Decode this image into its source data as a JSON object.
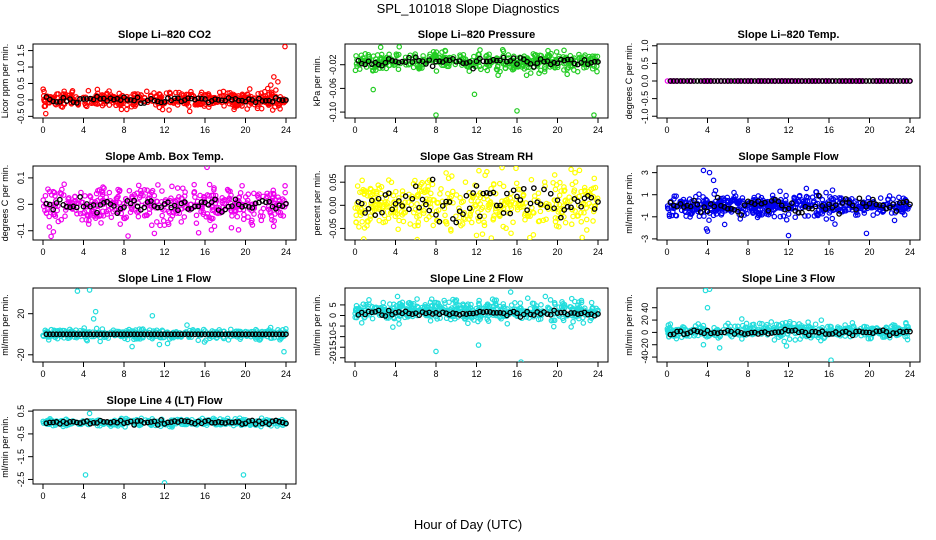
{
  "title": "SPL_101018  Slope Diagnostics",
  "xlabel": "Hour of Day (UTC)",
  "chart_data": [
    {
      "type": "scatter",
      "title": "Slope Li–820 CO2",
      "ylabel": "Licor ppm per min.",
      "xlim": [
        0,
        24
      ],
      "ylim": [
        -0.55,
        1.7
      ],
      "yticks": [
        -0.5,
        0.0,
        0.5,
        1.0,
        1.5
      ],
      "yticklabels": [
        "-0.5",
        "0.0",
        "0.5",
        "1.0",
        "1.5"
      ],
      "xticks": [
        0,
        4,
        8,
        12,
        16,
        20,
        24
      ],
      "noise": 0.12,
      "mean_noise": 0.05,
      "series": [
        {
          "role": "daily",
          "color": "#ff0000",
          "points_per_day": 420,
          "center": 0.0
        },
        {
          "role": "mean",
          "color": "#000000",
          "center": 0.0
        }
      ],
      "outliers": [
        [
          22.5,
          0.45
        ],
        [
          22.8,
          0.7
        ],
        [
          23.0,
          0.3
        ],
        [
          23.2,
          0.55
        ],
        [
          23.9,
          1.62
        ],
        [
          21.9,
          0.25
        ]
      ]
    },
    {
      "type": "scatter",
      "title": "Slope Li–820 Pressure",
      "ylabel": "kPa per min.",
      "xlim": [
        0,
        24
      ],
      "ylim": [
        -0.11,
        0.015
      ],
      "yticks": [
        -0.1,
        -0.06,
        -0.02
      ],
      "yticklabels": [
        "-0.10",
        "-0.06",
        "-0.02"
      ],
      "xticks": [
        0,
        4,
        8,
        12,
        16,
        20,
        24
      ],
      "noise": 0.008,
      "mean_noise": 0.004,
      "series": [
        {
          "role": "daily",
          "color": "#22cc22",
          "points_per_day": 420,
          "center": -0.015
        },
        {
          "role": "mean",
          "color": "#000000",
          "center": -0.015
        }
      ],
      "outliers": [
        [
          1.8,
          -0.062
        ],
        [
          8.0,
          -0.105
        ],
        [
          11.8,
          -0.07
        ],
        [
          16.0,
          -0.098
        ],
        [
          23.6,
          -0.105
        ]
      ]
    },
    {
      "type": "scatter",
      "title": "Slope Li–820 Temp.",
      "ylabel": "degrees C per min.",
      "xlim": [
        0,
        24
      ],
      "ylim": [
        -1.05,
        1.05
      ],
      "yticks": [
        -1.0,
        -0.5,
        0.0,
        0.5,
        1.0
      ],
      "yticklabels": [
        "-1.0",
        "-0.5",
        "0.0",
        "0.5",
        "1.0"
      ],
      "xticks": [
        0,
        4,
        8,
        12,
        16,
        20,
        24
      ],
      "noise": 0.0,
      "mean_noise": 0.0,
      "series": [
        {
          "role": "daily",
          "color": "#ee00ee",
          "points_per_day": 140,
          "center": 0.0
        },
        {
          "role": "mean",
          "color": "#000000",
          "center": 0.0
        }
      ],
      "outliers": []
    },
    {
      "type": "scatter",
      "title": "Slope Amb. Box Temp.",
      "ylabel": "degrees C per min.",
      "xlim": [
        0,
        24
      ],
      "ylim": [
        -0.135,
        0.145
      ],
      "yticks": [
        -0.1,
        0.0,
        0.1
      ],
      "yticklabels": [
        "-0.1",
        "0.0",
        "0.1"
      ],
      "xticks": [
        0,
        4,
        8,
        12,
        16,
        20,
        24
      ],
      "noise": 0.035,
      "mean_noise": 0.012,
      "series": [
        {
          "role": "daily",
          "color": "#ee00ee",
          "points_per_day": 420,
          "center": -0.005
        },
        {
          "role": "mean",
          "color": "#000000",
          "center": -0.005
        }
      ],
      "outliers": [
        [
          16.2,
          0.14
        ],
        [
          8.4,
          -0.12
        ],
        [
          11.0,
          -0.11
        ]
      ]
    },
    {
      "type": "scatter",
      "title": "Slope Gas Stream RH",
      "ylabel": "percent per min.",
      "xlim": [
        0,
        24
      ],
      "ylim": [
        -0.075,
        0.085
      ],
      "yticks": [
        -0.05,
        0.0,
        0.05
      ],
      "yticklabels": [
        "-0.05",
        "0.00",
        "0.05"
      ],
      "xticks": [
        0,
        4,
        8,
        12,
        16,
        20,
        24
      ],
      "noise": 0.03,
      "mean_noise": 0.02,
      "series": [
        {
          "role": "daily",
          "color": "#ffff00",
          "points_per_day": 420,
          "center": 0.0
        },
        {
          "role": "mean",
          "color": "#000000",
          "center": 0.0
        }
      ],
      "outliers": [
        [
          9.0,
          0.07
        ],
        [
          12.0,
          -0.065
        ],
        [
          15.9,
          0.08
        ]
      ]
    },
    {
      "type": "scatter",
      "title": "Slope Sample Flow",
      "ylabel": "ml/min per min.",
      "xlim": [
        0,
        24
      ],
      "ylim": [
        -3.1,
        3.6
      ],
      "yticks": [
        -3,
        -1,
        1,
        3
      ],
      "yticklabels": [
        "-3",
        "-1",
        "1",
        "3"
      ],
      "xticks": [
        0,
        4,
        8,
        12,
        16,
        20,
        24
      ],
      "noise": 0.5,
      "mean_noise": 0.35,
      "series": [
        {
          "role": "daily",
          "color": "#0000ee",
          "points_per_day": 520,
          "center": 0.0
        },
        {
          "role": "mean",
          "color": "#000000",
          "center": 0.0
        }
      ],
      "outliers": [
        [
          3.6,
          3.2
        ],
        [
          4.2,
          3.0
        ],
        [
          4.6,
          2.3
        ],
        [
          3.9,
          -2.1
        ],
        [
          4.0,
          -2.3
        ],
        [
          12.0,
          -2.7
        ],
        [
          19.7,
          -2.5
        ]
      ]
    },
    {
      "type": "scatter",
      "title": "Slope Line 1 Flow",
      "ylabel": "ml/min per min.",
      "xlim": [
        0,
        24
      ],
      "ylim": [
        -27,
        45
      ],
      "yticks": [
        -20,
        20
      ],
      "yticklabels": [
        "-20",
        "20"
      ],
      "xticks": [
        0,
        4,
        8,
        12,
        16,
        20,
        24
      ],
      "noise": 2.5,
      "mean_noise": 0.0,
      "series": [
        {
          "role": "daily",
          "color": "#22dddd",
          "points_per_day": 420,
          "center": 0.0
        },
        {
          "role": "mean",
          "color": "#000000",
          "center": 0.0
        }
      ],
      "outliers": [
        [
          3.4,
          42
        ],
        [
          4.6,
          43
        ],
        [
          5.2,
          22
        ],
        [
          5.0,
          15
        ],
        [
          8.8,
          -12
        ],
        [
          10.8,
          18
        ],
        [
          11.5,
          -10
        ],
        [
          12.3,
          -9
        ],
        [
          23.8,
          -17
        ]
      ]
    },
    {
      "type": "scatter",
      "title": "Slope Line 2 Flow",
      "ylabel": "ml/min per min.",
      "xlim": [
        0,
        24
      ],
      "ylim": [
        -22,
        13
      ],
      "yticks": [
        -20,
        -15,
        -10,
        -5,
        0,
        5
      ],
      "yticklabels": [
        "-20",
        "-15",
        "-10",
        "-5",
        "0",
        "5"
      ],
      "xticks": [
        0,
        4,
        8,
        12,
        16,
        20,
        24
      ],
      "noise": 2.4,
      "mean_noise": 0.6,
      "series": [
        {
          "role": "daily",
          "color": "#22dddd",
          "points_per_day": 520,
          "center": 2.0
        },
        {
          "role": "mean",
          "color": "#000000",
          "center": 1.0
        }
      ],
      "outliers": [
        [
          8.0,
          -17
        ],
        [
          16.4,
          -22
        ],
        [
          12.2,
          -14
        ],
        [
          18.8,
          9
        ],
        [
          4.2,
          9
        ]
      ]
    },
    {
      "type": "scatter",
      "title": "Slope Line 3 Flow",
      "ylabel": "ml/min per min.",
      "xlim": [
        0,
        24
      ],
      "ylim": [
        -48,
        72
      ],
      "yticks": [
        -40,
        -20,
        0,
        20,
        40
      ],
      "yticklabels": [
        "-40",
        "-20",
        "0",
        "20",
        "40"
      ],
      "xticks": [
        0,
        4,
        8,
        12,
        16,
        20,
        24
      ],
      "noise": 6,
      "mean_noise": 2,
      "series": [
        {
          "role": "daily",
          "color": "#22dddd",
          "points_per_day": 480,
          "center": 2.0
        },
        {
          "role": "mean",
          "color": "#000000",
          "center": 0.0
        }
      ],
      "outliers": [
        [
          3.8,
          68
        ],
        [
          4.2,
          70
        ],
        [
          4.0,
          40
        ],
        [
          5.2,
          -25
        ],
        [
          11.8,
          -22
        ],
        [
          16.2,
          -45
        ],
        [
          3.6,
          -20
        ]
      ]
    },
    {
      "type": "scatter",
      "title": "Slope Line 4 (LT) Flow",
      "ylabel": "ml/min per min.",
      "xlim": [
        0,
        24
      ],
      "ylim": [
        -2.7,
        0.55
      ],
      "yticks": [
        -2.5,
        -1.5,
        -0.5,
        0.5
      ],
      "yticklabels": [
        "-2.5",
        "-1.5",
        "-0.5",
        "0.5"
      ],
      "xticks": [
        0,
        4,
        8,
        12,
        16,
        20,
        24
      ],
      "noise": 0.07,
      "mean_noise": 0.05,
      "series": [
        {
          "role": "daily",
          "color": "#22dddd",
          "points_per_day": 420,
          "center": 0.0
        },
        {
          "role": "mean",
          "color": "#000000",
          "center": 0.0
        }
      ],
      "outliers": [
        [
          4.2,
          -2.3
        ],
        [
          12.0,
          -2.65
        ],
        [
          19.8,
          -2.3
        ],
        [
          4.6,
          0.4
        ]
      ]
    }
  ]
}
